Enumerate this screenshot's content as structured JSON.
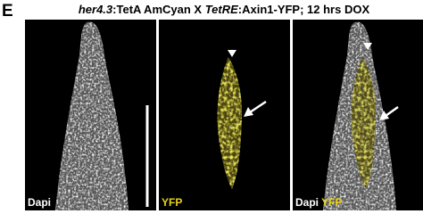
{
  "panel_letter": "E",
  "title": {
    "parts": [
      "her4.3",
      ":TetA AmCyan X ",
      "TetRE",
      ":Axin1-YFP; 12 hrs DOX"
    ]
  },
  "panels": [
    {
      "labels": [
        "Dapi"
      ]
    },
    {
      "labels": [
        "YFP"
      ]
    },
    {
      "labels": [
        "Dapi",
        "YFP"
      ]
    }
  ]
}
